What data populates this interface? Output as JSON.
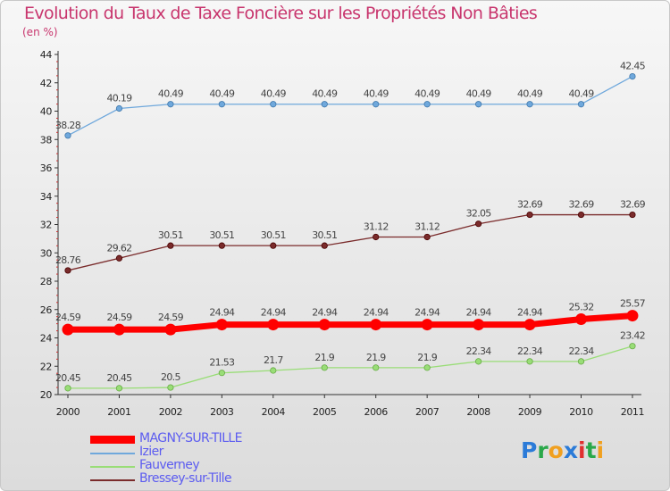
{
  "chart_data": {
    "type": "line",
    "title": "Evolution du Taux de Taxe Foncière sur les Propriétés Non Bâties",
    "subtitle": "(en %)",
    "xlabel": "",
    "ylabel": "(en %)",
    "categories": [
      "2000",
      "2001",
      "2002",
      "2003",
      "2004",
      "2005",
      "2006",
      "2007",
      "2008",
      "2009",
      "2010",
      "2011"
    ],
    "ylim": [
      20,
      44
    ],
    "yticks": [
      20,
      22,
      24,
      26,
      28,
      30,
      32,
      34,
      36,
      38,
      40,
      42,
      44
    ],
    "grid": false,
    "legend_position": "bottom-left",
    "series": [
      {
        "name": "MAGNY-SUR-TILLE",
        "color": "#ff0000",
        "emphasis": true,
        "values": [
          24.59,
          24.59,
          24.59,
          24.94,
          24.94,
          24.94,
          24.94,
          24.94,
          24.94,
          24.94,
          25.32,
          25.57
        ],
        "labels": [
          "24.59",
          "24.59",
          "24.59",
          "24.94",
          "24.94",
          "24.94",
          "24.94",
          "24.94",
          "24.94",
          "24.94",
          "25.32",
          "25.57"
        ]
      },
      {
        "name": "Izier",
        "color": "#6fa8dc",
        "emphasis": false,
        "values": [
          38.28,
          40.19,
          40.49,
          40.49,
          40.49,
          40.49,
          40.49,
          40.49,
          40.49,
          40.49,
          40.49,
          42.45
        ],
        "labels": [
          "38.28",
          "40.19",
          "40.49",
          "40.49",
          "40.49",
          "40.49",
          "40.49",
          "40.49",
          "40.49",
          "40.49",
          "40.49",
          "42.45"
        ]
      },
      {
        "name": "Fauverney",
        "color": "#99dd77",
        "emphasis": false,
        "values": [
          20.45,
          20.45,
          20.5,
          21.53,
          21.7,
          21.9,
          21.9,
          21.9,
          22.34,
          22.34,
          22.34,
          23.42
        ],
        "labels": [
          "20.45",
          "20.45",
          "20.5",
          "21.53",
          "21.7",
          "21.9",
          "21.9",
          "21.9",
          "22.34",
          "22.34",
          "22.34",
          "23.42"
        ]
      },
      {
        "name": "Bressey-sur-Tille",
        "color": "#7a2b2b",
        "emphasis": false,
        "values": [
          28.76,
          29.62,
          30.51,
          30.51,
          30.51,
          30.51,
          31.12,
          31.12,
          32.05,
          32.69,
          32.69,
          32.69
        ],
        "labels": [
          "28.76",
          "29.62",
          "30.51",
          "30.51",
          "30.51",
          "30.51",
          "31.12",
          "31.12",
          "32.05",
          "32.69",
          "32.69",
          "32.69"
        ]
      }
    ]
  },
  "logo": {
    "letters": [
      {
        "ch": "P",
        "color": "#2b7bd8"
      },
      {
        "ch": "r",
        "color": "#2aa84a"
      },
      {
        "ch": "o",
        "color": "#f0a020"
      },
      {
        "ch": "x",
        "color": "#2b7bd8"
      },
      {
        "ch": "i",
        "color": "#e03030"
      },
      {
        "ch": "t",
        "color": "#2aa84a"
      },
      {
        "ch": "i",
        "color": "#f0a020"
      }
    ]
  }
}
